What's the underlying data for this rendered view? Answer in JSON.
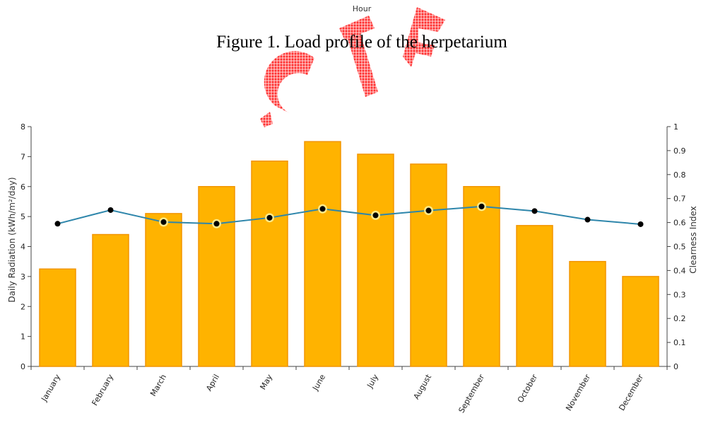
{
  "top_axis_label": "Hour",
  "figure_caption": "Figure 1. Load profile of the herpetarium",
  "chart_data": {
    "type": "bar",
    "categories": [
      "January",
      "February",
      "March",
      "April",
      "May",
      "June",
      "July",
      "August",
      "September",
      "October",
      "November",
      "December"
    ],
    "series": [
      {
        "name": "",
        "type": "bar",
        "axis": "left",
        "color": "#ffb300",
        "values": [
          3.25,
          4.4,
          5.1,
          6.0,
          6.85,
          7.5,
          7.08,
          6.75,
          6.0,
          4.7,
          3.5,
          3.0
        ]
      },
      {
        "name": "",
        "type": "line",
        "axis": "right",
        "color": "#2e86ab",
        "values": [
          0.595,
          0.652,
          0.602,
          0.595,
          0.62,
          0.657,
          0.63,
          0.65,
          0.667,
          0.648,
          0.612,
          0.593
        ]
      }
    ],
    "ylabel": "Daily Radiation (kWh/m²/day)",
    "y2label": "Clearness Index",
    "xlabel": "",
    "ylim": [
      0,
      8
    ],
    "y2lim": [
      0,
      1
    ],
    "yticks": [
      "0",
      "1",
      "2",
      "3",
      "4",
      "5",
      "6",
      "7",
      "8"
    ],
    "y2ticks": [
      "0",
      "0.1",
      "0.2",
      "0.3",
      "0.4",
      "0.5",
      "0.6",
      "0.7",
      "0.8",
      "0.9",
      "1"
    ],
    "grid": false,
    "legend": "none"
  }
}
